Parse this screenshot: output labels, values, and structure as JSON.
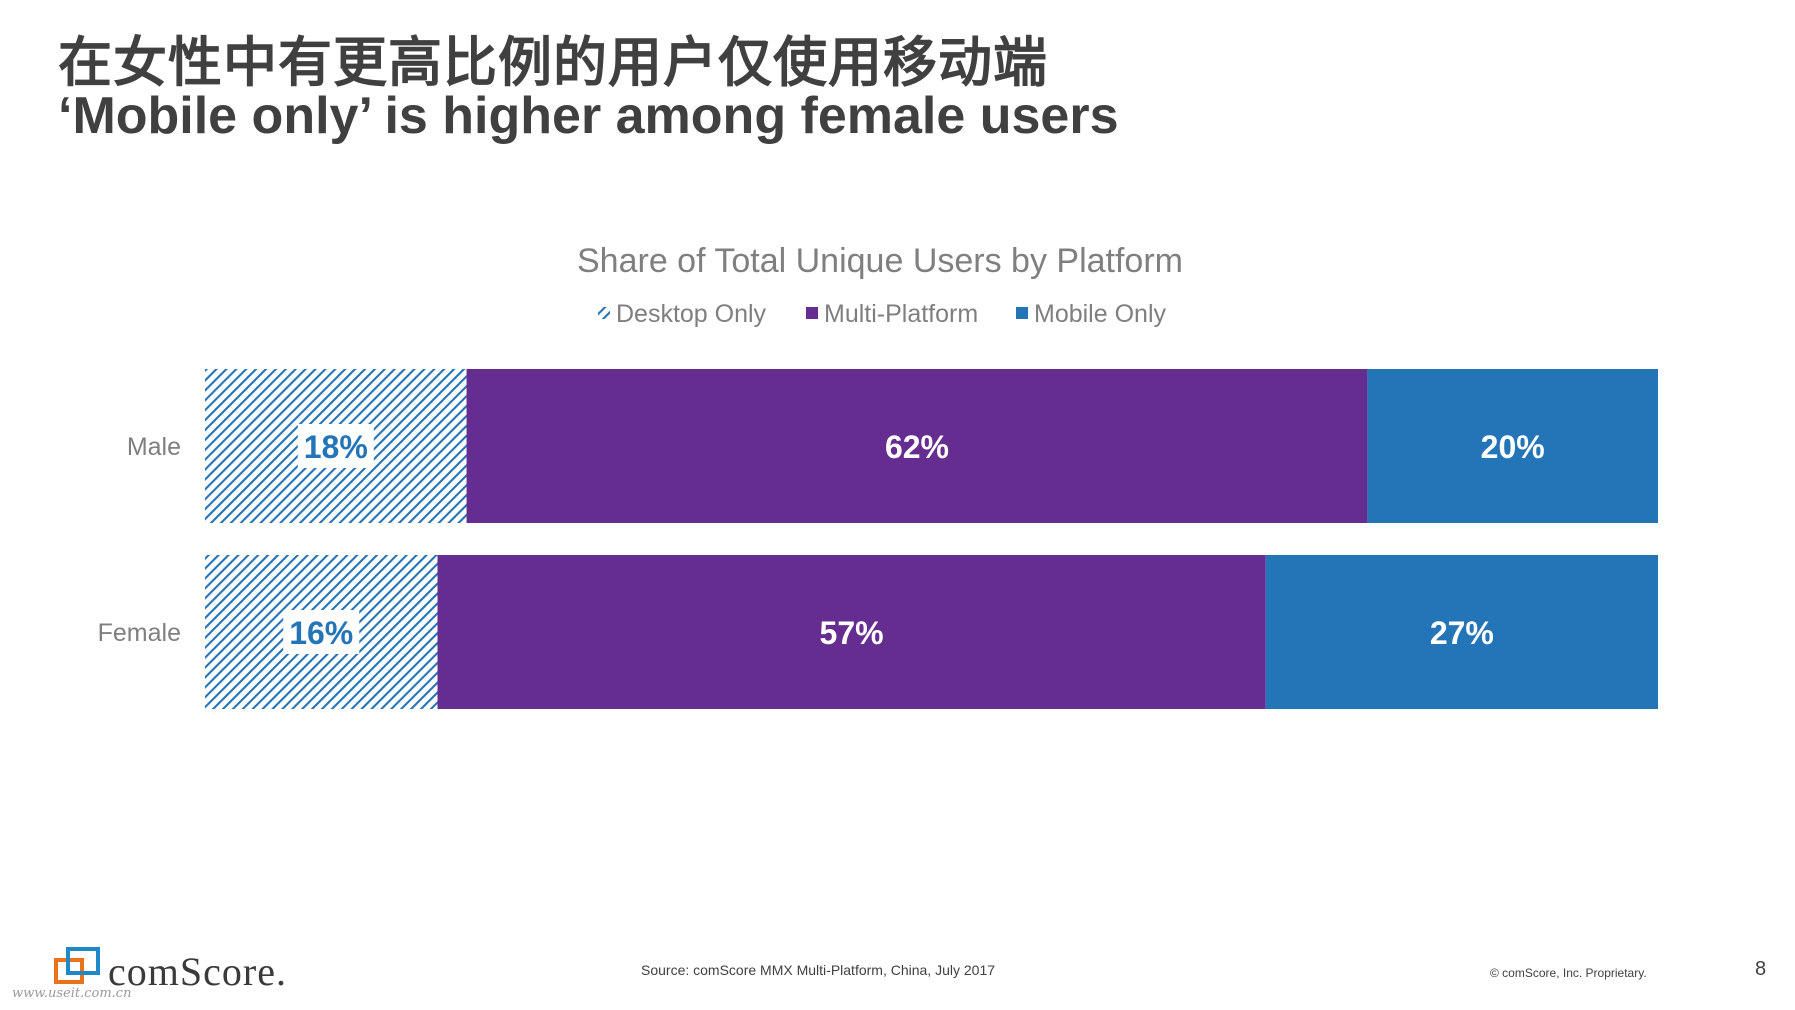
{
  "slide": {
    "title_cn": "在女性中有更高比例的用户仅使用移动端",
    "title_en": "‘Mobile only’ is higher among female users",
    "source": "Source: comScore MMX Multi-Platform, China, July 2017",
    "copyright": "© comScore, Inc. Proprietary.",
    "page_number": "8",
    "logo_text": "comScore.",
    "watermark": "www.useit.com.cn"
  },
  "chart_data": {
    "type": "bar",
    "orientation": "horizontal",
    "stacked": true,
    "title": "Share of Total Unique Users by Platform",
    "legend_position": "top",
    "categories": [
      "Male",
      "Female"
    ],
    "series": [
      {
        "name": "Desktop Only",
        "values": [
          18,
          16
        ],
        "labels": [
          "18%",
          "16%"
        ],
        "color": "#2474b8",
        "pattern": "diagonal-hatch"
      },
      {
        "name": "Multi-Platform",
        "values": [
          62,
          57
        ],
        "labels": [
          "62%",
          "57%"
        ],
        "color": "#662d91"
      },
      {
        "name": "Mobile Only",
        "values": [
          20,
          27
        ],
        "labels": [
          "20%",
          "27%"
        ],
        "color": "#2474b8"
      }
    ],
    "xlim": [
      0,
      100
    ],
    "grid": false
  }
}
